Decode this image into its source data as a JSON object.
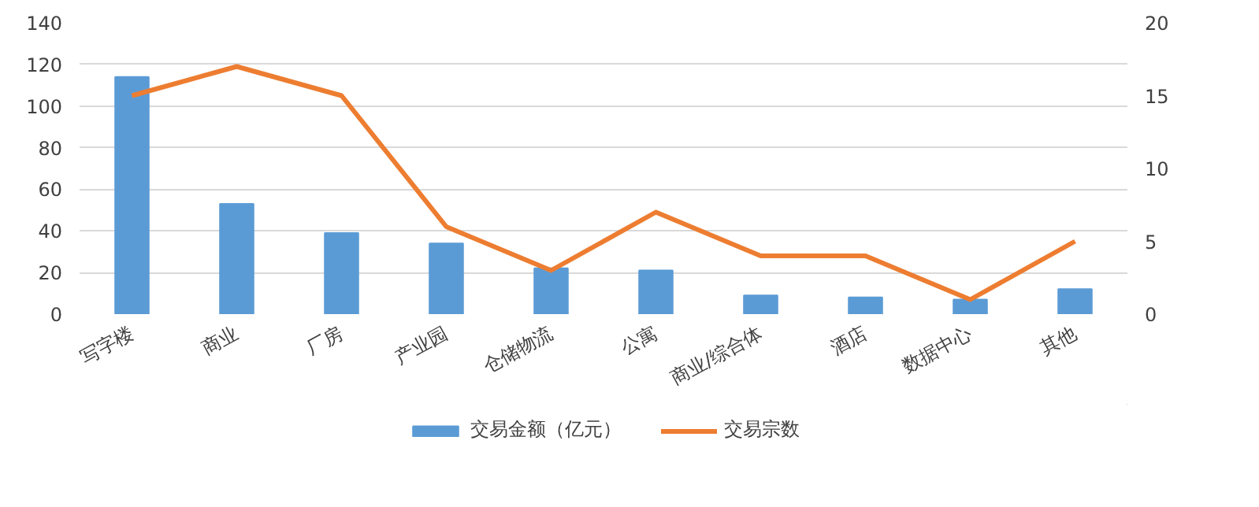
{
  "chart_data": {
    "type": "bar",
    "categories": [
      "写字楼",
      "商业",
      "厂房",
      "产业园",
      "仓储物流",
      "公寓",
      "商业/综合体",
      "酒店",
      "数据中心",
      "其他"
    ],
    "series": [
      {
        "name": "交易金额（亿元）",
        "type": "bar",
        "color": "#5b9bd5",
        "values": [
          114,
          53,
          39,
          34,
          22,
          21,
          9,
          8,
          7,
          12
        ]
      },
      {
        "name": "交易宗数",
        "type": "line",
        "axis": "y2",
        "color": "#ed7d31",
        "marker": "none",
        "values": [
          15,
          17,
          15,
          6,
          3,
          7,
          4,
          4,
          1,
          5
        ]
      }
    ],
    "ylim": [
      0,
      140
    ],
    "yticks": [
      0,
      20,
      40,
      60,
      80,
      100,
      120,
      140
    ],
    "y2lim": [
      0,
      20
    ],
    "y2ticks": [
      0,
      5,
      10,
      15,
      20
    ],
    "grid": "y",
    "legend": "bottom"
  }
}
